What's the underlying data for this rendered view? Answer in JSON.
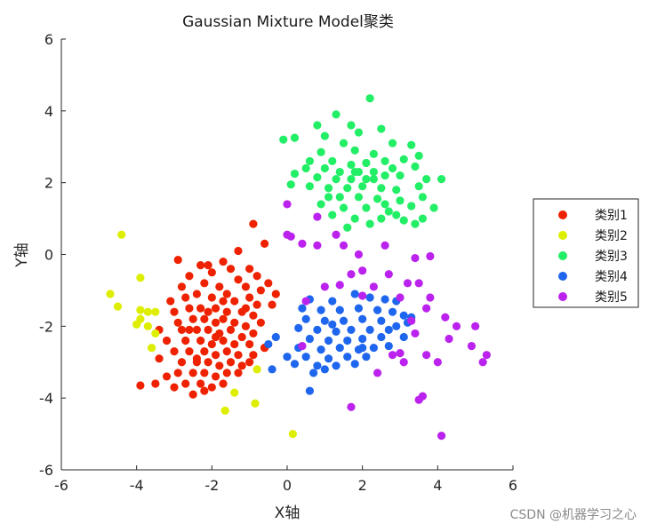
{
  "chart_data": {
    "type": "scatter",
    "title": "Gaussian Mixture Model聚类",
    "xlabel": "X轴",
    "ylabel": "Y轴",
    "xlim": [
      -6,
      6
    ],
    "ylim": [
      -6,
      6
    ],
    "xticks": [
      -6,
      -4,
      -2,
      0,
      2,
      4,
      6
    ],
    "yticks": [
      -6,
      -4,
      -2,
      0,
      2,
      4,
      6
    ],
    "grid": false,
    "legend_position": "right",
    "series": [
      {
        "name": "类别1",
        "color": "#ee2200",
        "points": [
          [
            -2.9,
            -0.15
          ],
          [
            -2.3,
            -0.3
          ],
          [
            -2.0,
            -0.5
          ],
          [
            -1.5,
            -0.4
          ],
          [
            -1.3,
            -0.7
          ],
          [
            -1.0,
            -0.4
          ],
          [
            -0.8,
            -0.6
          ],
          [
            -0.5,
            -0.8
          ],
          [
            -2.6,
            -0.6
          ],
          [
            -2.8,
            -0.9
          ],
          [
            -2.2,
            -0.8
          ],
          [
            -1.8,
            -0.9
          ],
          [
            -1.6,
            -1.1
          ],
          [
            -1.1,
            -0.9
          ],
          [
            -0.7,
            -1.0
          ],
          [
            -0.3,
            -1.1
          ],
          [
            -3.1,
            -1.3
          ],
          [
            -2.7,
            -1.2
          ],
          [
            -2.4,
            -1.1
          ],
          [
            -2.0,
            -1.2
          ],
          [
            -1.7,
            -1.3
          ],
          [
            -1.4,
            -1.3
          ],
          [
            -1.0,
            -1.2
          ],
          [
            -0.8,
            -1.4
          ],
          [
            -3.0,
            -1.6
          ],
          [
            -2.6,
            -1.5
          ],
          [
            -2.3,
            -1.5
          ],
          [
            -2.1,
            -1.6
          ],
          [
            -1.9,
            -1.5
          ],
          [
            -1.6,
            -1.6
          ],
          [
            -1.2,
            -1.6
          ],
          [
            -0.9,
            -1.7
          ],
          [
            -2.9,
            -1.9
          ],
          [
            -2.5,
            -1.8
          ],
          [
            -2.2,
            -1.8
          ],
          [
            -1.9,
            -1.9
          ],
          [
            -1.7,
            -1.8
          ],
          [
            -1.4,
            -1.9
          ],
          [
            -1.1,
            -2.0
          ],
          [
            -0.7,
            -1.9
          ],
          [
            -3.4,
            -2.1
          ],
          [
            -2.8,
            -2.1
          ],
          [
            -2.4,
            -2.1
          ],
          [
            -2.1,
            -2.1
          ],
          [
            -1.8,
            -2.2
          ],
          [
            -1.5,
            -2.1
          ],
          [
            -1.2,
            -2.3
          ],
          [
            -0.9,
            -2.2
          ],
          [
            -3.2,
            -2.4
          ],
          [
            -2.7,
            -2.4
          ],
          [
            -2.3,
            -2.4
          ],
          [
            -2.0,
            -2.5
          ],
          [
            -1.7,
            -2.4
          ],
          [
            -1.4,
            -2.5
          ],
          [
            -1.0,
            -2.5
          ],
          [
            -0.6,
            -2.6
          ],
          [
            -3.0,
            -2.7
          ],
          [
            -2.6,
            -2.7
          ],
          [
            -2.2,
            -2.7
          ],
          [
            -1.9,
            -2.8
          ],
          [
            -1.6,
            -2.7
          ],
          [
            -1.3,
            -2.8
          ],
          [
            -0.9,
            -2.8
          ],
          [
            -2.8,
            -3.0
          ],
          [
            -2.4,
            -3.0
          ],
          [
            -2.1,
            -3.0
          ],
          [
            -1.8,
            -3.1
          ],
          [
            -1.5,
            -3.0
          ],
          [
            -1.2,
            -3.1
          ],
          [
            -1.0,
            -3.0
          ],
          [
            -3.4,
            -2.9
          ],
          [
            -2.9,
            -3.3
          ],
          [
            -2.5,
            -3.3
          ],
          [
            -2.2,
            -3.3
          ],
          [
            -1.9,
            -3.4
          ],
          [
            -1.6,
            -3.3
          ],
          [
            -1.3,
            -3.3
          ],
          [
            -3.2,
            -3.4
          ],
          [
            -2.7,
            -3.6
          ],
          [
            -2.3,
            -3.6
          ],
          [
            -2.0,
            -3.7
          ],
          [
            -1.7,
            -3.6
          ],
          [
            -3.5,
            -3.6
          ],
          [
            -3.0,
            -3.7
          ],
          [
            -2.5,
            -3.9
          ],
          [
            -2.2,
            -3.8
          ],
          [
            -3.9,
            -3.65
          ],
          [
            -0.9,
            0.85
          ],
          [
            -0.6,
            0.3
          ],
          [
            -1.3,
            0.1
          ],
          [
            -1.7,
            -0.2
          ],
          [
            -2.1,
            -0.3
          ],
          [
            -0.6,
            -2.6
          ],
          [
            -0.4,
            -1.4
          ],
          [
            -2.4,
            -2.9
          ],
          [
            -1.1,
            -1.5
          ],
          [
            -1.9,
            -2.3
          ],
          [
            -2.6,
            -2.1
          ]
        ]
      },
      {
        "name": "类别2",
        "color": "#ddee00",
        "points": [
          [
            -4.4,
            0.55
          ],
          [
            -3.9,
            -0.65
          ],
          [
            -4.7,
            -1.1
          ],
          [
            -4.5,
            -1.45
          ],
          [
            -3.9,
            -1.55
          ],
          [
            -3.7,
            -1.6
          ],
          [
            -3.5,
            -1.6
          ],
          [
            -3.9,
            -1.8
          ],
          [
            -4.0,
            -1.95
          ],
          [
            -3.7,
            -2.0
          ],
          [
            -3.5,
            -2.2
          ],
          [
            -3.6,
            -2.6
          ],
          [
            -0.8,
            -3.2
          ],
          [
            -1.4,
            -3.85
          ],
          [
            -0.85,
            -4.15
          ],
          [
            -1.65,
            -4.35
          ],
          [
            0.15,
            -5.0
          ]
        ]
      },
      {
        "name": "类别3",
        "color": "#22ee66",
        "points": [
          [
            2.2,
            4.35
          ],
          [
            1.3,
            3.9
          ],
          [
            0.8,
            3.6
          ],
          [
            1.7,
            3.6
          ],
          [
            2.5,
            3.5
          ],
          [
            0.2,
            3.25
          ],
          [
            -0.1,
            3.2
          ],
          [
            1.0,
            3.3
          ],
          [
            1.9,
            3.4
          ],
          [
            2.8,
            3.1
          ],
          [
            3.3,
            3.05
          ],
          [
            1.5,
            3.1
          ],
          [
            0.9,
            2.85
          ],
          [
            1.8,
            2.9
          ],
          [
            2.3,
            2.8
          ],
          [
            3.5,
            2.75
          ],
          [
            0.6,
            2.6
          ],
          [
            1.2,
            2.6
          ],
          [
            1.7,
            2.5
          ],
          [
            2.1,
            2.55
          ],
          [
            2.6,
            2.6
          ],
          [
            3.1,
            2.65
          ],
          [
            0.5,
            2.4
          ],
          [
            1.0,
            2.4
          ],
          [
            1.4,
            2.3
          ],
          [
            1.9,
            2.3
          ],
          [
            2.3,
            2.3
          ],
          [
            2.8,
            2.4
          ],
          [
            3.4,
            2.45
          ],
          [
            0.2,
            2.25
          ],
          [
            0.8,
            2.15
          ],
          [
            1.3,
            2.1
          ],
          [
            1.7,
            2.1
          ],
          [
            2.1,
            2.1
          ],
          [
            2.6,
            2.2
          ],
          [
            3.0,
            2.2
          ],
          [
            3.7,
            2.1
          ],
          [
            4.1,
            2.1
          ],
          [
            0.1,
            1.95
          ],
          [
            0.6,
            1.9
          ],
          [
            1.1,
            1.85
          ],
          [
            1.6,
            1.85
          ],
          [
            2.0,
            1.9
          ],
          [
            2.5,
            1.85
          ],
          [
            2.9,
            1.8
          ],
          [
            3.5,
            1.9
          ],
          [
            1.4,
            1.6
          ],
          [
            1.9,
            1.6
          ],
          [
            2.4,
            1.55
          ],
          [
            3.0,
            1.5
          ],
          [
            3.6,
            1.6
          ],
          [
            0.9,
            1.4
          ],
          [
            1.5,
            1.3
          ],
          [
            2.1,
            1.3
          ],
          [
            2.7,
            1.2
          ],
          [
            3.3,
            1.35
          ],
          [
            3.9,
            1.3
          ],
          [
            1.2,
            1.1
          ],
          [
            1.8,
            1.0
          ],
          [
            2.5,
            1.0
          ],
          [
            3.1,
            0.95
          ],
          [
            3.6,
            1.0
          ],
          [
            1.6,
            0.75
          ],
          [
            2.2,
            0.85
          ],
          [
            3.4,
            0.85
          ],
          [
            2.9,
            1.1
          ],
          [
            1.1,
            1.6
          ],
          [
            2.3,
            2.1
          ],
          [
            1.8,
            2.3
          ],
          [
            2.6,
            1.4
          ]
        ]
      },
      {
        "name": "类别4",
        "color": "#1f66ee",
        "points": [
          [
            0.6,
            -1.25
          ],
          [
            1.2,
            -1.3
          ],
          [
            1.8,
            -1.1
          ],
          [
            2.2,
            -1.2
          ],
          [
            2.6,
            -1.25
          ],
          [
            2.9,
            -1.3
          ],
          [
            0.4,
            -1.5
          ],
          [
            0.9,
            -1.55
          ],
          [
            1.4,
            -1.55
          ],
          [
            1.9,
            -1.5
          ],
          [
            2.4,
            -1.55
          ],
          [
            2.8,
            -1.6
          ],
          [
            3.1,
            -1.7
          ],
          [
            0.5,
            -1.8
          ],
          [
            1.0,
            -1.85
          ],
          [
            1.5,
            -1.85
          ],
          [
            2.0,
            -1.8
          ],
          [
            2.5,
            -1.85
          ],
          [
            3.2,
            -1.9
          ],
          [
            0.3,
            -2.05
          ],
          [
            0.8,
            -2.1
          ],
          [
            1.3,
            -2.15
          ],
          [
            1.7,
            -2.1
          ],
          [
            2.2,
            -2.1
          ],
          [
            2.7,
            -2.1
          ],
          [
            -0.3,
            -2.3
          ],
          [
            0.6,
            -2.35
          ],
          [
            1.1,
            -2.4
          ],
          [
            1.6,
            -2.4
          ],
          [
            2.0,
            -2.35
          ],
          [
            2.5,
            -2.3
          ],
          [
            3.1,
            -2.3
          ],
          [
            -0.5,
            -2.5
          ],
          [
            0.3,
            -2.6
          ],
          [
            0.9,
            -2.65
          ],
          [
            1.4,
            -2.6
          ],
          [
            1.9,
            -2.65
          ],
          [
            2.3,
            -2.6
          ],
          [
            2.7,
            -2.55
          ],
          [
            0.0,
            -2.85
          ],
          [
            0.5,
            -2.85
          ],
          [
            1.1,
            -2.9
          ],
          [
            1.6,
            -2.85
          ],
          [
            2.1,
            -2.85
          ],
          [
            0.2,
            -3.05
          ],
          [
            0.8,
            -3.1
          ],
          [
            1.3,
            -3.1
          ],
          [
            1.8,
            -3.05
          ],
          [
            -0.4,
            -3.2
          ],
          [
            0.7,
            -3.3
          ],
          [
            1.0,
            -3.2
          ],
          [
            0.6,
            -3.8
          ],
          [
            3.3,
            -1.75
          ],
          [
            2.9,
            -2.0
          ],
          [
            1.2,
            -1.95
          ],
          [
            2.0,
            -2.6
          ]
        ]
      },
      {
        "name": "类别5",
        "color": "#bb22ee",
        "points": [
          [
            0.0,
            1.4
          ],
          [
            0.8,
            1.05
          ],
          [
            1.3,
            0.55
          ],
          [
            0.1,
            0.5
          ],
          [
            0.4,
            0.3
          ],
          [
            0.8,
            0.25
          ],
          [
            1.5,
            0.25
          ],
          [
            1.9,
            0.0
          ],
          [
            2.6,
            0.25
          ],
          [
            3.4,
            -0.1
          ],
          [
            3.8,
            -0.05
          ],
          [
            2.0,
            -0.45
          ],
          [
            2.7,
            -0.55
          ],
          [
            1.7,
            -0.55
          ],
          [
            1.4,
            -0.85
          ],
          [
            2.3,
            -0.9
          ],
          [
            3.2,
            -0.8
          ],
          [
            3.5,
            -0.8
          ],
          [
            1.0,
            -0.9
          ],
          [
            3.0,
            -1.2
          ],
          [
            3.8,
            -1.2
          ],
          [
            0.5,
            -1.3
          ],
          [
            3.7,
            -1.5
          ],
          [
            4.2,
            -1.75
          ],
          [
            3.3,
            -1.85
          ],
          [
            4.5,
            -2.0
          ],
          [
            5.0,
            -2.0
          ],
          [
            3.4,
            -2.2
          ],
          [
            0.4,
            -2.55
          ],
          [
            3.0,
            -2.75
          ],
          [
            4.3,
            -2.35
          ],
          [
            4.9,
            -2.55
          ],
          [
            5.3,
            -2.8
          ],
          [
            5.2,
            -3.0
          ],
          [
            3.7,
            -2.8
          ],
          [
            2.8,
            -2.8
          ],
          [
            3.1,
            -3.0
          ],
          [
            4.0,
            -3.0
          ],
          [
            2.4,
            -3.3
          ],
          [
            3.6,
            -3.95
          ],
          [
            3.5,
            -4.05
          ],
          [
            1.7,
            -4.25
          ],
          [
            4.1,
            -5.05
          ],
          [
            0.0,
            0.55
          ],
          [
            2.0,
            -1.15
          ]
        ]
      }
    ]
  },
  "watermark": "CSDN @机器学习之心"
}
